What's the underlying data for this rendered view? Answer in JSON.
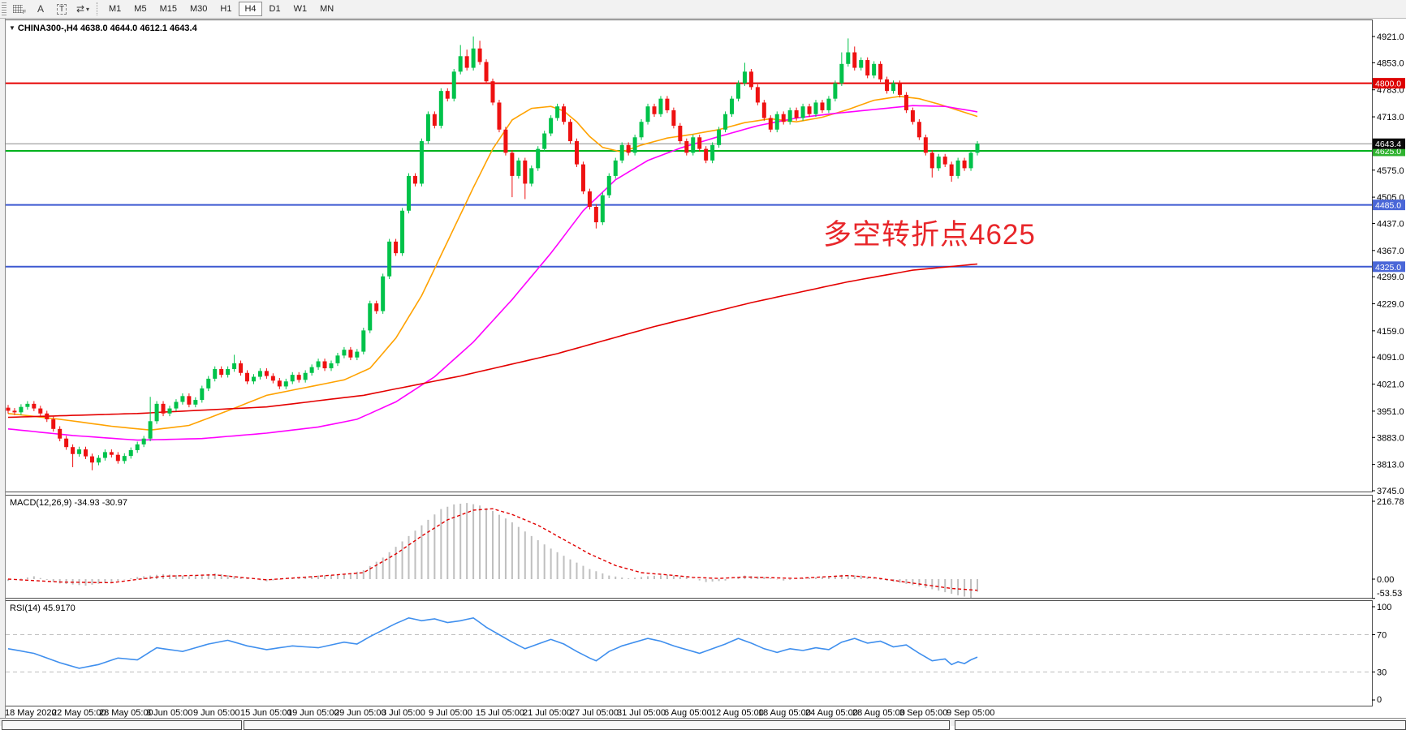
{
  "toolbar": {
    "icons": [
      {
        "name": "grid-snap-icon",
        "glyph": "F"
      },
      {
        "name": "font-icon",
        "glyph": "A"
      },
      {
        "name": "text-label-icon",
        "glyph": "T"
      },
      {
        "name": "cursor-arrows-icon",
        "glyph": "⇄"
      },
      {
        "name": "dropdown-caret-icon",
        "glyph": "▾"
      }
    ],
    "timeframes": [
      "M1",
      "M5",
      "M15",
      "M30",
      "H1",
      "H4",
      "D1",
      "W1",
      "MN"
    ],
    "active_timeframe": "H4"
  },
  "header": {
    "triangle": "▼",
    "text": "CHINA300-,H4  4638.0 4644.0 4612.1 4643.4"
  },
  "colors": {
    "bull": "#00c24a",
    "bear": "#ee1111",
    "ma_fast": "#ffa200",
    "ma_medium": "#ff00ff",
    "ma_slow": "#e40000",
    "level_red": "#e60000",
    "level_green": "#00b21d",
    "level_blue": "#3c59d1",
    "current_line": "#8a8a8a",
    "badge_red": "#dd0000",
    "badge_green": "#2eb22e",
    "badge_blue": "#4a67d8",
    "badge_black": "#0a0a0a",
    "macd_hist": "#bfbfbf",
    "macd_signal": "#e00000",
    "rsi_line": "#3f8fee",
    "rsi_levels": "#bdbdbd",
    "annotation": "#e8262a",
    "pane_border": "#4d4d4d"
  },
  "chart_data": {
    "type": "candlestick",
    "title": "CHINA300-,H4",
    "period": "H4",
    "ohlc_display": {
      "open": 4638.0,
      "high": 4644.0,
      "low": 4612.1,
      "close": 4643.4
    },
    "price_axis": {
      "ticks": [
        4921.0,
        4853.0,
        4783.0,
        4713.0,
        4575.0,
        4505.0,
        4437.0,
        4367.0,
        4299.0,
        4229.0,
        4159.0,
        4091.0,
        4021.0,
        3951.0,
        3883.0,
        3813.0,
        3745.0
      ],
      "top": 4921.0,
      "bottom": 3745.0
    },
    "hlines": [
      {
        "price": 4800.0,
        "color_key": "level_red",
        "badge_key": "badge_red",
        "label": "4800.0"
      },
      {
        "price": 4625.0,
        "color_key": "level_green",
        "badge_key": "badge_green",
        "label": "4625.0"
      },
      {
        "price": 4485.0,
        "color_key": "level_blue",
        "badge_key": "badge_blue",
        "label": "4485.0"
      },
      {
        "price": 4325.0,
        "color_key": "level_blue",
        "badge_key": "badge_blue",
        "label": "4325.0"
      }
    ],
    "current_price": {
      "value": 4643.4,
      "label": "4643.4"
    },
    "annotation": {
      "text": "多空转折点4625"
    },
    "first_open": 3960,
    "wick": 7,
    "closes": [
      3952,
      3948,
      3962,
      3970,
      3958,
      3945,
      3930,
      3905,
      3880,
      3858,
      3840,
      3852,
      3834,
      3818,
      3830,
      3845,
      3838,
      3822,
      3835,
      3850,
      3865,
      3880,
      3925,
      3970,
      3945,
      3958,
      3975,
      3990,
      3968,
      3980,
      4010,
      4035,
      4060,
      4045,
      4060,
      4075,
      4050,
      4028,
      4040,
      4055,
      4042,
      4030,
      4015,
      4028,
      4045,
      4032,
      4050,
      4065,
      4080,
      4062,
      4075,
      4095,
      4110,
      4090,
      4105,
      4160,
      4230,
      4210,
      4300,
      4390,
      4360,
      4470,
      4560,
      4540,
      4650,
      4720,
      4690,
      4780,
      4760,
      4830,
      4870,
      4840,
      4890,
      4855,
      4805,
      4750,
      4680,
      4620,
      4560,
      4600,
      4540,
      4580,
      4630,
      4670,
      4710,
      4740,
      4700,
      4650,
      4590,
      4520,
      4480,
      4440,
      4510,
      4560,
      4600,
      4640,
      4620,
      4660,
      4700,
      4740,
      4720,
      4760,
      4730,
      4690,
      4650,
      4620,
      4660,
      4630,
      4600,
      4640,
      4680,
      4720,
      4760,
      4800,
      4830,
      4790,
      4750,
      4710,
      4680,
      4720,
      4700,
      4730,
      4710,
      4740,
      4720,
      4750,
      4730,
      4760,
      4800,
      4850,
      4880,
      4840,
      4860,
      4820,
      4850,
      4810,
      4780,
      4800,
      4770,
      4730,
      4700,
      4660,
      4620,
      4580,
      4610,
      4590,
      4560,
      4600,
      4580,
      4620,
      4643.4
    ],
    "high_spikes": {
      "22": 3988,
      "35": 4097,
      "70": 4899,
      "71": 4887,
      "72": 4921,
      "73": 4910,
      "114": 4853,
      "129": 4880,
      "130": 4916,
      "131": 4895
    },
    "low_spikes": {
      "10": 3806,
      "13": 3798,
      "78": 4505,
      "80": 4500,
      "91": 4424,
      "143": 4556,
      "146": 4545
    },
    "moving_averages": [
      {
        "name": "ma-fast-orange",
        "color_key": "ma_fast",
        "points": [
          [
            0,
            3945
          ],
          [
            8,
            3930
          ],
          [
            16,
            3912
          ],
          [
            22,
            3902
          ],
          [
            28,
            3914
          ],
          [
            34,
            3952
          ],
          [
            40,
            3992
          ],
          [
            46,
            4012
          ],
          [
            52,
            4032
          ],
          [
            56,
            4062
          ],
          [
            60,
            4140
          ],
          [
            64,
            4250
          ],
          [
            68,
            4390
          ],
          [
            72,
            4530
          ],
          [
            75,
            4630
          ],
          [
            78,
            4705
          ],
          [
            81,
            4735
          ],
          [
            84,
            4740
          ],
          [
            86,
            4728
          ],
          [
            88,
            4700
          ],
          [
            90,
            4662
          ],
          [
            92,
            4634
          ],
          [
            95,
            4622
          ],
          [
            98,
            4640
          ],
          [
            102,
            4658
          ],
          [
            106,
            4668
          ],
          [
            110,
            4680
          ],
          [
            114,
            4698
          ],
          [
            118,
            4708
          ],
          [
            122,
            4700
          ],
          [
            126,
            4712
          ],
          [
            130,
            4732
          ],
          [
            134,
            4756
          ],
          [
            138,
            4766
          ],
          [
            141,
            4760
          ],
          [
            144,
            4746
          ],
          [
            147,
            4730
          ],
          [
            150,
            4714
          ]
        ]
      },
      {
        "name": "ma-medium-magenta",
        "color_key": "ma_medium",
        "points": [
          [
            0,
            3905
          ],
          [
            10,
            3888
          ],
          [
            20,
            3876
          ],
          [
            30,
            3880
          ],
          [
            40,
            3894
          ],
          [
            48,
            3910
          ],
          [
            54,
            3930
          ],
          [
            60,
            3975
          ],
          [
            66,
            4040
          ],
          [
            72,
            4130
          ],
          [
            78,
            4240
          ],
          [
            84,
            4360
          ],
          [
            89,
            4470
          ],
          [
            94,
            4550
          ],
          [
            99,
            4600
          ],
          [
            104,
            4632
          ],
          [
            110,
            4662
          ],
          [
            116,
            4690
          ],
          [
            122,
            4710
          ],
          [
            128,
            4722
          ],
          [
            134,
            4732
          ],
          [
            140,
            4742
          ],
          [
            145,
            4740
          ],
          [
            150,
            4726
          ]
        ]
      },
      {
        "name": "ma-slow-red",
        "color_key": "ma_slow",
        "points": [
          [
            0,
            3935
          ],
          [
            20,
            3945
          ],
          [
            40,
            3962
          ],
          [
            55,
            3992
          ],
          [
            70,
            4042
          ],
          [
            85,
            4100
          ],
          [
            100,
            4170
          ],
          [
            115,
            4232
          ],
          [
            130,
            4286
          ],
          [
            140,
            4316
          ],
          [
            150,
            4332
          ]
        ]
      }
    ],
    "indicators": {
      "macd": {
        "label": "MACD(12,26,9)",
        "value_main": "-34.93",
        "value_signal": "-30.97",
        "axis_ticks": [
          216.78,
          0.0,
          -53.53
        ],
        "histogram_points": [
          [
            0,
            -5
          ],
          [
            4,
            8
          ],
          [
            8,
            -12
          ],
          [
            12,
            -18
          ],
          [
            16,
            -8
          ],
          [
            20,
            6
          ],
          [
            24,
            14
          ],
          [
            28,
            8
          ],
          [
            32,
            16
          ],
          [
            36,
            6
          ],
          [
            40,
            -6
          ],
          [
            44,
            4
          ],
          [
            48,
            10
          ],
          [
            52,
            12
          ],
          [
            55,
            25
          ],
          [
            58,
            60
          ],
          [
            61,
            105
          ],
          [
            64,
            150
          ],
          [
            67,
            195
          ],
          [
            69,
            208
          ],
          [
            71,
            212
          ],
          [
            73,
            205
          ],
          [
            75,
            190
          ],
          [
            78,
            158
          ],
          [
            81,
            120
          ],
          [
            84,
            85
          ],
          [
            87,
            55
          ],
          [
            90,
            28
          ],
          [
            93,
            10
          ],
          [
            96,
            2
          ],
          [
            99,
            8
          ],
          [
            102,
            12
          ],
          [
            105,
            5
          ],
          [
            108,
            -8
          ],
          [
            111,
            -4
          ],
          [
            114,
            10
          ],
          [
            117,
            6
          ],
          [
            120,
            -4
          ],
          [
            123,
            2
          ],
          [
            126,
            6
          ],
          [
            129,
            12
          ],
          [
            132,
            10
          ],
          [
            135,
            -2
          ],
          [
            138,
            -10
          ],
          [
            141,
            -20
          ],
          [
            144,
            -32
          ],
          [
            147,
            -45
          ],
          [
            149,
            -52
          ],
          [
            150,
            -35
          ]
        ],
        "signal_points": [
          [
            0,
            0
          ],
          [
            8,
            -8
          ],
          [
            16,
            -10
          ],
          [
            24,
            8
          ],
          [
            32,
            12
          ],
          [
            40,
            -2
          ],
          [
            48,
            8
          ],
          [
            55,
            18
          ],
          [
            60,
            70
          ],
          [
            64,
            120
          ],
          [
            68,
            165
          ],
          [
            72,
            192
          ],
          [
            75,
            196
          ],
          [
            78,
            180
          ],
          [
            82,
            150
          ],
          [
            86,
            110
          ],
          [
            90,
            70
          ],
          [
            94,
            38
          ],
          [
            98,
            18
          ],
          [
            102,
            12
          ],
          [
            106,
            5
          ],
          [
            110,
            2
          ],
          [
            114,
            6
          ],
          [
            118,
            4
          ],
          [
            122,
            2
          ],
          [
            126,
            6
          ],
          [
            130,
            10
          ],
          [
            134,
            4
          ],
          [
            138,
            -6
          ],
          [
            142,
            -16
          ],
          [
            146,
            -26
          ],
          [
            150,
            -31
          ]
        ]
      },
      "rsi": {
        "label": "RSI(14)",
        "value": "45.9170",
        "axis_ticks": [
          100,
          70,
          30,
          0
        ],
        "levels": [
          70,
          30
        ],
        "points": [
          [
            0,
            55
          ],
          [
            4,
            50
          ],
          [
            8,
            40
          ],
          [
            11,
            34
          ],
          [
            14,
            38
          ],
          [
            17,
            45
          ],
          [
            20,
            43
          ],
          [
            23,
            56
          ],
          [
            27,
            52
          ],
          [
            31,
            60
          ],
          [
            34,
            64
          ],
          [
            37,
            58
          ],
          [
            40,
            54
          ],
          [
            44,
            58
          ],
          [
            48,
            56
          ],
          [
            52,
            62
          ],
          [
            54,
            60
          ],
          [
            56,
            68
          ],
          [
            58,
            75
          ],
          [
            60,
            82
          ],
          [
            62,
            88
          ],
          [
            64,
            85
          ],
          [
            66,
            87
          ],
          [
            68,
            83
          ],
          [
            70,
            85
          ],
          [
            72,
            88
          ],
          [
            74,
            78
          ],
          [
            76,
            70
          ],
          [
            78,
            62
          ],
          [
            80,
            55
          ],
          [
            82,
            60
          ],
          [
            84,
            65
          ],
          [
            86,
            60
          ],
          [
            88,
            52
          ],
          [
            90,
            45
          ],
          [
            91,
            42
          ],
          [
            93,
            52
          ],
          [
            95,
            58
          ],
          [
            97,
            62
          ],
          [
            99,
            66
          ],
          [
            101,
            63
          ],
          [
            103,
            58
          ],
          [
            105,
            54
          ],
          [
            107,
            50
          ],
          [
            109,
            55
          ],
          [
            111,
            60
          ],
          [
            113,
            66
          ],
          [
            115,
            61
          ],
          [
            117,
            55
          ],
          [
            119,
            51
          ],
          [
            121,
            55
          ],
          [
            123,
            53
          ],
          [
            125,
            56
          ],
          [
            127,
            54
          ],
          [
            129,
            62
          ],
          [
            131,
            66
          ],
          [
            133,
            61
          ],
          [
            135,
            63
          ],
          [
            137,
            57
          ],
          [
            139,
            59
          ],
          [
            141,
            50
          ],
          [
            143,
            42
          ],
          [
            145,
            44
          ],
          [
            146,
            38
          ],
          [
            147,
            41
          ],
          [
            148,
            39
          ],
          [
            149,
            43
          ],
          [
            150,
            46
          ]
        ]
      }
    },
    "x_labels": [
      "18 May 2020",
      "22 May 05:00",
      "28 May 05:00",
      "3 Jun 05:00",
      "9 Jun 05:00",
      "15 Jun 05:00",
      "19 Jun 05:00",
      "29 Jun 05:00",
      "3 Jul 05:00",
      "9 Jul 05:00",
      "15 Jul 05:00",
      "21 Jul 05:00",
      "27 Jul 05:00",
      "31 Jul 05:00",
      "6 Aug 05:00",
      "12 Aug 05:00",
      "18 Aug 05:00",
      "24 Aug 05:00",
      "28 Aug 05:00",
      "3 Sep 05:00",
      "9 Sep 05:00"
    ]
  }
}
